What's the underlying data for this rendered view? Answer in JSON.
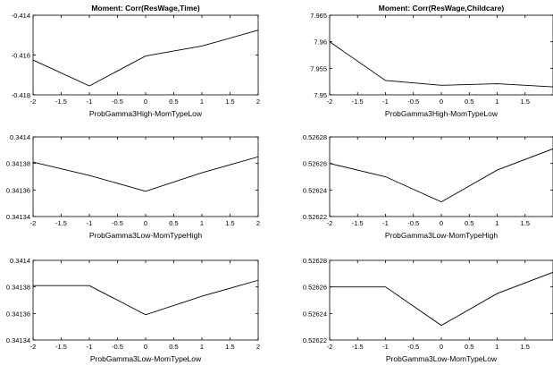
{
  "chart_data": [
    {
      "type": "line",
      "title": "Moment: Corr(ResWage,Time)",
      "xlabel": "ProbGamma3High-MomTypeLow",
      "xlim": [
        -2,
        2
      ],
      "ylim": [
        -0.418,
        -0.414
      ],
      "xticks": [
        "-2",
        "-1.5",
        "-1",
        "-0.5",
        "0",
        "0.5",
        "1",
        "1.5",
        "2"
      ],
      "yticks": [
        "-0.414",
        "-0.416",
        "-0.418"
      ],
      "x": [
        -2,
        -1,
        0,
        1,
        2
      ],
      "y": [
        -0.41625,
        -0.41755,
        -0.41605,
        -0.41555,
        -0.41475
      ]
    },
    {
      "type": "line",
      "title": "Moment: Corr(ResWage,Childcare)",
      "xlabel": "ProbGamma3High-MomTypeLow",
      "xlim": [
        -2,
        2
      ],
      "ylim": [
        7.95,
        7.965
      ],
      "xticks": [
        "-2",
        "-1.5",
        "-1",
        "-0.5",
        "0",
        "0.5",
        "1",
        "1.5"
      ],
      "yticks": [
        "7.965",
        "7.96",
        "7.955",
        "7.95"
      ],
      "x": [
        -2,
        -1,
        0,
        1,
        2
      ],
      "y": [
        7.96,
        7.9527,
        7.9518,
        7.9521,
        7.9515
      ]
    },
    {
      "type": "line",
      "title": "",
      "xlabel": "ProbGamma3Low-MomTypeHigh",
      "xlim": [
        -2,
        2
      ],
      "ylim": [
        0.34134,
        0.3414
      ],
      "xticks": [
        "-2",
        "-1.5",
        "-1",
        "-0.5",
        "0",
        "0.5",
        "1",
        "1.5",
        "2"
      ],
      "yticks": [
        "0.3414",
        "0.34138",
        "0.34136",
        "0.34134"
      ],
      "x": [
        -2,
        -1,
        0,
        1,
        2
      ],
      "y": [
        0.341381,
        0.341371,
        0.341359,
        0.341373,
        0.341385
      ]
    },
    {
      "type": "line",
      "title": "",
      "xlabel": "ProbGamma3Low-MomTypeHigh",
      "xlim": [
        -2,
        2
      ],
      "ylim": [
        0.52622,
        0.52628
      ],
      "xticks": [
        "-2",
        "-1.5",
        "-1",
        "-0.5",
        "0",
        "0.5",
        "1",
        "1.5"
      ],
      "yticks": [
        "0.52628",
        "0.52626",
        "0.52624",
        "0.52622"
      ],
      "x": [
        -2,
        -1,
        0,
        1,
        2
      ],
      "y": [
        0.52626,
        0.52625,
        0.526231,
        0.526255,
        0.526271
      ]
    },
    {
      "type": "line",
      "title": "",
      "xlabel": "ProbGamma3Low-MomTypeLow",
      "xlim": [
        -2,
        2
      ],
      "ylim": [
        0.34134,
        0.3414
      ],
      "xticks": [
        "-2",
        "-1.5",
        "-1",
        "-0.5",
        "0",
        "0.5",
        "1",
        "1.5",
        "2"
      ],
      "yticks": [
        "0.3414",
        "0.34138",
        "0.34136",
        "0.34134"
      ],
      "x": [
        -2,
        -1,
        0,
        1,
        2
      ],
      "y": [
        0.341381,
        0.341381,
        0.341359,
        0.341373,
        0.341385
      ]
    },
    {
      "type": "line",
      "title": "",
      "xlabel": "ProbGamma3Low-MomTypeLow",
      "xlim": [
        -2,
        2
      ],
      "ylim": [
        0.52622,
        0.52628
      ],
      "xticks": [
        "-2",
        "-1.5",
        "-1",
        "-0.5",
        "0",
        "0.5",
        "1",
        "1.5"
      ],
      "yticks": [
        "0.52628",
        "0.52626",
        "0.52624",
        "0.52622"
      ],
      "x": [
        -2,
        -1,
        0,
        1,
        2
      ],
      "y": [
        0.52626,
        0.52626,
        0.526231,
        0.526255,
        0.526271
      ]
    }
  ]
}
